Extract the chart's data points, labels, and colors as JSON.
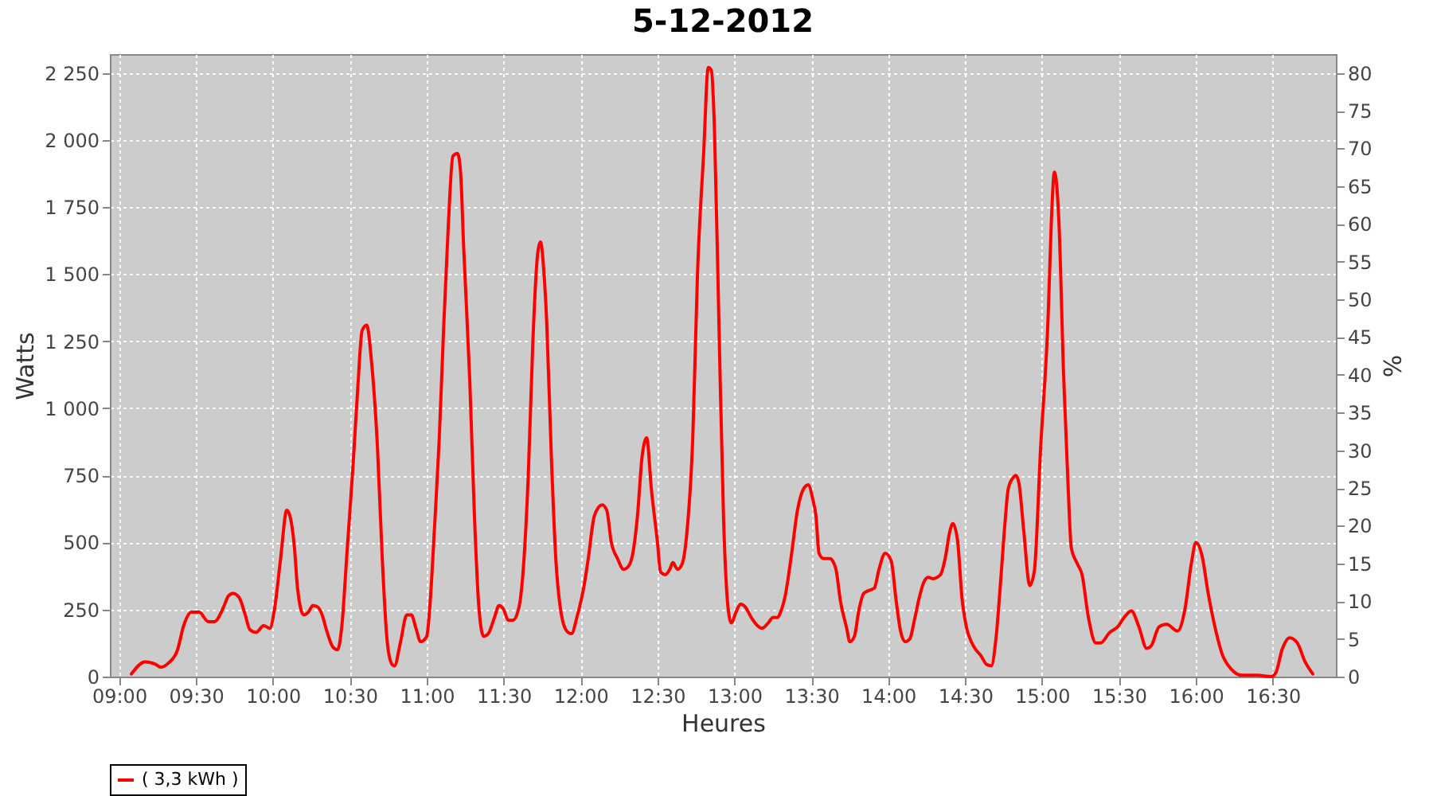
{
  "chart_data": {
    "type": "line",
    "title": "5-12-2012",
    "xlabel": "Heures",
    "ylabel": "Watts",
    "y2label": "%",
    "xlim": [
      8.94,
      16.91
    ],
    "xticks": [
      {
        "value": 9,
        "label": "09:00"
      },
      {
        "value": 9.5,
        "label": "09:30"
      },
      {
        "value": 10,
        "label": "10:00"
      },
      {
        "value": 10.5,
        "label": "10:30"
      },
      {
        "value": 11,
        "label": "11:00"
      },
      {
        "value": 11.5,
        "label": "11:30"
      },
      {
        "value": 12,
        "label": "12:00"
      },
      {
        "value": 12.5,
        "label": "12:30"
      },
      {
        "value": 13,
        "label": "13:00"
      },
      {
        "value": 13.5,
        "label": "13:30"
      },
      {
        "value": 14,
        "label": "14:00"
      },
      {
        "value": 14.5,
        "label": "14:30"
      },
      {
        "value": 15,
        "label": "15:00"
      },
      {
        "value": 15.5,
        "label": "15:30"
      },
      {
        "value": 16,
        "label": "16:00"
      },
      {
        "value": 16.5,
        "label": "16:30"
      }
    ],
    "ylim": [
      0,
      2320
    ],
    "yticks": [
      0,
      250,
      500,
      750,
      {
        "value": 1000,
        "label": "1 000"
      },
      {
        "value": 1250,
        "label": "1 250"
      },
      {
        "value": 1500,
        "label": "1 500"
      },
      {
        "value": 1750,
        "label": "1 750"
      },
      {
        "value": 2000,
        "label": "2 000"
      },
      {
        "value": 2250,
        "label": "2 250"
      }
    ],
    "y2lim": [
      0,
      82.5
    ],
    "y2ticks": [
      0,
      5,
      10,
      15,
      20,
      25,
      30,
      35,
      40,
      45,
      50,
      55,
      60,
      65,
      70,
      75,
      80
    ],
    "grid": true,
    "legend": "bottom",
    "series": [
      {
        "name": "( 3,3 kWh )",
        "color": "#ff0000",
        "x": [
          9.08,
          9.17,
          9.24,
          9.27,
          9.32,
          9.38,
          9.42,
          9.47,
          9.52,
          9.58,
          9.62,
          9.68,
          9.71,
          9.74,
          9.78,
          9.82,
          9.85,
          9.89,
          9.94,
          9.98,
          10.01,
          10.05,
          10.09,
          10.11,
          10.14,
          10.16,
          10.2,
          10.23,
          10.26,
          10.29,
          10.32,
          10.35,
          10.39,
          10.42,
          10.45,
          10.48,
          10.52,
          10.55,
          10.58,
          10.61,
          10.64,
          10.68,
          10.71,
          10.74,
          10.77,
          10.79,
          10.83,
          10.87,
          10.9,
          10.93,
          10.96,
          11.0,
          11.02,
          11.05,
          11.08,
          11.11,
          11.14,
          11.17,
          11.2,
          11.22,
          11.24,
          11.28,
          11.31,
          11.34,
          11.37,
          11.4,
          11.44,
          11.47,
          11.5,
          11.53,
          11.56,
          11.6,
          11.63,
          11.66,
          11.69,
          11.72,
          11.74,
          11.76,
          11.78,
          11.81,
          11.84,
          11.87,
          11.91,
          11.94,
          11.98,
          12.02,
          12.05,
          12.09,
          12.14,
          12.17,
          12.2,
          12.24,
          12.28,
          12.31,
          12.34,
          12.37,
          12.4,
          12.43,
          12.46,
          12.5,
          12.52,
          12.55,
          12.58,
          12.6,
          12.63,
          12.66,
          12.69,
          12.73,
          12.76,
          12.8,
          12.83,
          12.85,
          12.87,
          12.9,
          12.93,
          12.96,
          12.98,
          13.01,
          13.04,
          13.07,
          13.11,
          13.15,
          13.18,
          13.22,
          13.25,
          13.28,
          13.3,
          13.33,
          13.37,
          13.41,
          13.45,
          13.48,
          13.51,
          13.53,
          13.55,
          13.58,
          13.62,
          13.64,
          13.66,
          13.69,
          13.73,
          13.75,
          13.78,
          13.81,
          13.84,
          13.87,
          13.91,
          13.94,
          13.98,
          14.02,
          14.05,
          14.08,
          14.11,
          14.14,
          14.17,
          14.2,
          14.23,
          14.26,
          14.29,
          14.34,
          14.37,
          14.4,
          14.42,
          14.45,
          14.48,
          14.51,
          14.54,
          14.57,
          14.6,
          14.64,
          14.67,
          14.7,
          14.73,
          14.76,
          14.78,
          14.81,
          14.83,
          14.85,
          14.88,
          14.92,
          14.95,
          14.99,
          15.04,
          15.06,
          15.08,
          15.11,
          15.14,
          15.17,
          15.19,
          15.23,
          15.26,
          15.3,
          15.35,
          15.38,
          15.44,
          15.49,
          15.54,
          15.58,
          15.63,
          15.68,
          15.71,
          15.76,
          15.81,
          15.88,
          15.93,
          15.97,
          16.0,
          16.04,
          16.08,
          16.13,
          16.17,
          16.23,
          16.3,
          16.4,
          16.49,
          16.52,
          16.56,
          16.61,
          16.66,
          16.71,
          16.76
        ],
        "values": [
          10,
          55,
          45,
          35,
          50,
          100,
          190,
          240,
          240,
          205,
          205,
          260,
          300,
          310,
          295,
          230,
          175,
          165,
          190,
          180,
          250,
          440,
          620,
          600,
          480,
          330,
          230,
          240,
          265,
          260,
          230,
          170,
          110,
          100,
          200,
          450,
          780,
          1060,
          1290,
          1310,
          1180,
          850,
          450,
          150,
          50,
          40,
          130,
          230,
          230,
          180,
          130,
          150,
          260,
          550,
          870,
          1300,
          1680,
          1940,
          1950,
          1880,
          1600,
          1100,
          600,
          250,
          150,
          160,
          220,
          265,
          250,
          210,
          210,
          260,
          420,
          750,
          1250,
          1570,
          1620,
          1520,
          1320,
          820,
          430,
          250,
          170,
          160,
          230,
          330,
          440,
          600,
          640,
          620,
          500,
          440,
          400,
          410,
          460,
          600,
          820,
          890,
          700,
          500,
          390,
          380,
          400,
          425,
          400,
          420,
          530,
          900,
          1500,
          1950,
          2270,
          2260,
          2050,
          1300,
          580,
          250,
          200,
          240,
          270,
          260,
          220,
          190,
          180,
          200,
          220,
          220,
          240,
          300,
          450,
          620,
          700,
          715,
          660,
          600,
          460,
          440,
          440,
          430,
          400,
          280,
          180,
          130,
          150,
          250,
          310,
          320,
          330,
          400,
          460,
          430,
          290,
          170,
          130,
          140,
          210,
          290,
          350,
          370,
          365,
          380,
          440,
          540,
          570,
          510,
          290,
          180,
          130,
          100,
          80,
          45,
          40,
          140,
          350,
          580,
          700,
          740,
          750,
          720,
          550,
          340,
          395,
          845,
          1350,
          1690,
          1880,
          1690,
          1125,
          700,
          480,
          420,
          380,
          225,
          125,
          125,
          165,
          185,
          225,
          245,
          185,
          105,
          115,
          185,
          195,
          170,
          255,
          420,
          500,
          450,
          310,
          170,
          85,
          28,
          5,
          5,
          0,
          15,
          100,
          145,
          125,
          55,
          10
        ]
      }
    ]
  }
}
